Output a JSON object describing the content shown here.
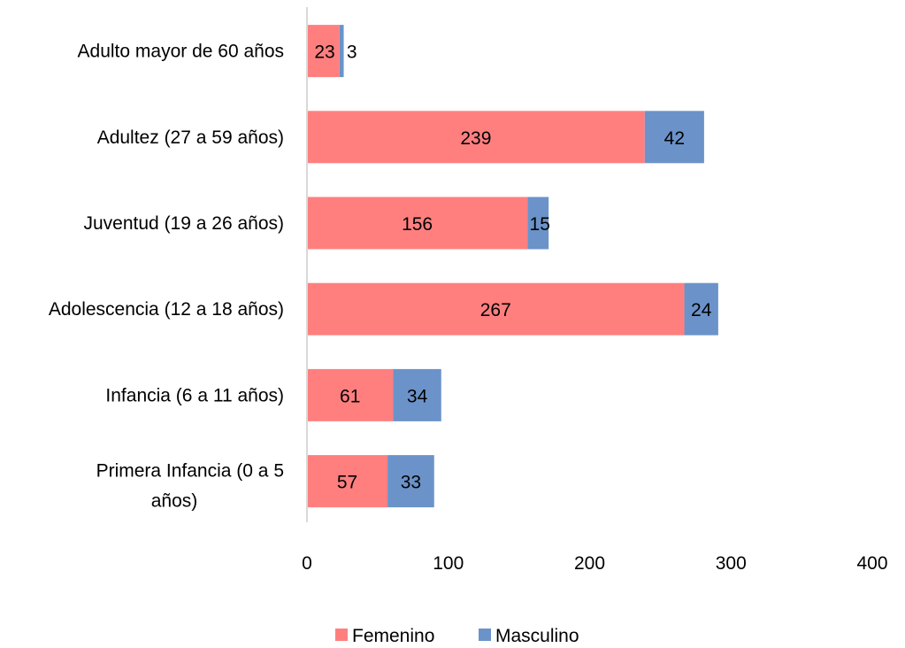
{
  "chart_data": {
    "type": "bar",
    "orientation": "horizontal",
    "stacked": true,
    "categories": [
      [
        "Adulto mayor de 60 años"
      ],
      [
        "Adultez (27 a 59 años)"
      ],
      [
        "Juventud (19 a 26 años)"
      ],
      [
        "Adolescencia (12 a 18 años)"
      ],
      [
        "Infancia (6 a 11 años)"
      ],
      [
        "Primera Infancia (0 a 5",
        "años)"
      ]
    ],
    "series": [
      {
        "name": "Femenino",
        "color": "#ff7f7f",
        "values": [
          23,
          239,
          156,
          267,
          61,
          57
        ]
      },
      {
        "name": "Masculino",
        "color": "#6b93c9",
        "values": [
          3,
          42,
          15,
          24,
          34,
          33
        ]
      }
    ],
    "xlim": [
      0,
      400
    ],
    "xticks": [
      "0",
      "100",
      "200",
      "300",
      "400"
    ],
    "grid": false,
    "legend_position": "bottom"
  }
}
